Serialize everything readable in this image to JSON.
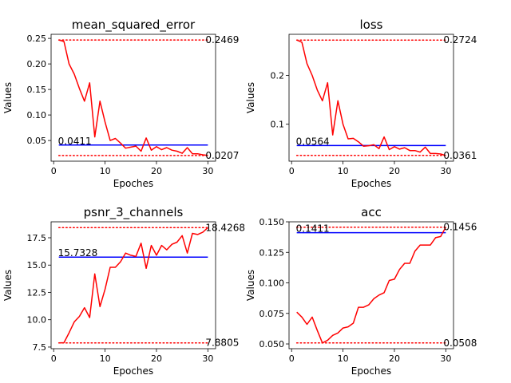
{
  "chart_data": [
    {
      "type": "line",
      "title": "mean_squared_error",
      "xlabel": "Epoches",
      "ylabel": "Values",
      "xlim": [
        -0.5,
        31.5
      ],
      "ylim": [
        0.0095,
        0.258
      ],
      "xticks": [
        0,
        10,
        20,
        30
      ],
      "yticks": [
        0.05,
        0.1,
        0.15,
        0.2,
        0.25
      ],
      "ytick_labels": [
        "0.05",
        "0.10",
        "0.15",
        "0.20",
        "0.25"
      ],
      "x": [
        1,
        2,
        3,
        4,
        5,
        6,
        7,
        8,
        9,
        10,
        11,
        12,
        13,
        14,
        15,
        16,
        17,
        18,
        19,
        20,
        21,
        22,
        23,
        24,
        25,
        26,
        27,
        28,
        29,
        30
      ],
      "values": [
        0.2469,
        0.244,
        0.2,
        0.18,
        0.152,
        0.127,
        0.163,
        0.057,
        0.127,
        0.086,
        0.05,
        0.054,
        0.045,
        0.035,
        0.037,
        0.039,
        0.029,
        0.055,
        0.031,
        0.038,
        0.032,
        0.036,
        0.031,
        0.029,
        0.025,
        0.036,
        0.024,
        0.024,
        0.022,
        0.0207
      ],
      "max": 0.2469,
      "min": 0.0207,
      "mean": 0.0411,
      "max_label": "0.2469",
      "min_label": "0.0207",
      "mean_label": "0.0411",
      "line_color": "#ff0000",
      "mean_color": "#0000ff"
    },
    {
      "type": "line",
      "title": "loss",
      "xlabel": "Epoches",
      "ylabel": "Values",
      "xlim": [
        -0.5,
        31.5
      ],
      "ylim": [
        0.0243,
        0.2842
      ],
      "xticks": [
        0,
        10,
        20,
        30
      ],
      "yticks": [
        0.1,
        0.2
      ],
      "ytick_labels": [
        "0.1",
        "0.2"
      ],
      "x": [
        1,
        2,
        3,
        4,
        5,
        6,
        7,
        8,
        9,
        10,
        11,
        12,
        13,
        14,
        15,
        16,
        17,
        18,
        19,
        20,
        21,
        22,
        23,
        24,
        25,
        26,
        27,
        28,
        29,
        30
      ],
      "values": [
        0.2724,
        0.268,
        0.224,
        0.2,
        0.17,
        0.148,
        0.185,
        0.078,
        0.148,
        0.1,
        0.07,
        0.071,
        0.064,
        0.055,
        0.056,
        0.058,
        0.05,
        0.074,
        0.048,
        0.054,
        0.049,
        0.052,
        0.046,
        0.046,
        0.043,
        0.053,
        0.04,
        0.04,
        0.039,
        0.0361
      ],
      "max": 0.2724,
      "min": 0.0361,
      "mean": 0.0564,
      "max_label": "0.2724",
      "min_label": "0.0361",
      "mean_label": "0.0564",
      "line_color": "#ff0000",
      "mean_color": "#0000ff"
    },
    {
      "type": "line",
      "title": "psnr_3_channels",
      "xlabel": "Epoches",
      "ylabel": "Values",
      "xlim": [
        -0.5,
        31.5
      ],
      "ylim": [
        7.35,
        18.96
      ],
      "xticks": [
        0,
        10,
        20,
        30
      ],
      "yticks": [
        7.5,
        10.0,
        12.5,
        15.0,
        17.5
      ],
      "ytick_labels": [
        "7.5",
        "10.0",
        "12.5",
        "15.0",
        "17.5"
      ],
      "x": [
        1,
        2,
        3,
        4,
        5,
        6,
        7,
        8,
        9,
        10,
        11,
        12,
        13,
        14,
        15,
        16,
        17,
        18,
        19,
        20,
        21,
        22,
        23,
        24,
        25,
        26,
        27,
        28,
        29,
        30
      ],
      "values": [
        7.8805,
        7.9,
        8.8,
        9.8,
        10.3,
        11.1,
        10.2,
        14.2,
        11.2,
        12.8,
        14.8,
        14.8,
        15.3,
        16.1,
        15.9,
        15.8,
        17.0,
        14.7,
        16.8,
        15.9,
        16.8,
        16.4,
        16.9,
        17.1,
        17.7,
        16.1,
        17.9,
        17.8,
        18.0,
        18.4268
      ],
      "max": 18.4268,
      "min": 7.8805,
      "mean": 15.7328,
      "max_label": "18.4268",
      "min_label": "7.8805",
      "mean_label": "15.7328",
      "line_color": "#ff0000",
      "mean_color": "#0000ff"
    },
    {
      "type": "line",
      "title": "acc",
      "xlabel": "Epoches",
      "ylabel": "Values",
      "xlim": [
        -0.5,
        31.5
      ],
      "ylim": [
        0.0461,
        0.15
      ],
      "xticks": [
        0,
        10,
        20,
        30
      ],
      "yticks": [
        0.05,
        0.075,
        0.1,
        0.125,
        0.15
      ],
      "ytick_labels": [
        "0.050",
        "0.075",
        "0.100",
        "0.125",
        "0.150"
      ],
      "x": [
        1,
        2,
        3,
        4,
        5,
        6,
        7,
        8,
        9,
        10,
        11,
        12,
        13,
        14,
        15,
        16,
        17,
        18,
        19,
        20,
        21,
        22,
        23,
        24,
        25,
        26,
        27,
        28,
        29,
        30
      ],
      "values": [
        0.076,
        0.072,
        0.066,
        0.072,
        0.061,
        0.0508,
        0.053,
        0.057,
        0.059,
        0.063,
        0.064,
        0.067,
        0.08,
        0.08,
        0.082,
        0.087,
        0.09,
        0.092,
        0.102,
        0.103,
        0.111,
        0.116,
        0.116,
        0.126,
        0.131,
        0.131,
        0.131,
        0.137,
        0.138,
        0.1456
      ],
      "max": 0.1456,
      "min": 0.0508,
      "mean": 0.1411,
      "max_label": "0.1456",
      "min_label": "0.0508",
      "mean_label": "0.1411",
      "line_color": "#ff0000",
      "mean_color": "#0000ff"
    }
  ]
}
